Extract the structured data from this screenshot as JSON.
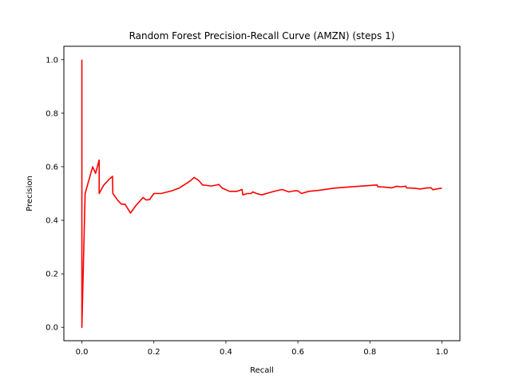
{
  "chart_data": {
    "type": "line",
    "title": "Random Forest Precision-Recall Curve (AMZN) (steps 1)",
    "xlabel": "Recall",
    "ylabel": "Precision",
    "xlim": [
      -0.05,
      1.05
    ],
    "ylim": [
      -0.05,
      1.05
    ],
    "xticks": [
      0.0,
      0.2,
      0.4,
      0.6,
      0.8,
      1.0
    ],
    "xtick_labels": [
      "0.0",
      "0.2",
      "0.4",
      "0.6",
      "0.8",
      "1.0"
    ],
    "yticks": [
      0.0,
      0.2,
      0.4,
      0.6,
      0.8,
      1.0
    ],
    "ytick_labels": [
      "0.0",
      "0.2",
      "0.4",
      "0.6",
      "0.8",
      "1.0"
    ],
    "grid": false,
    "legend": "none",
    "series": [
      {
        "color": "#ff0000",
        "x": [
          0.0,
          0.0,
          0.0,
          0.009,
          0.03,
          0.038,
          0.045,
          0.048,
          0.048,
          0.06,
          0.075,
          0.085,
          0.086,
          0.1,
          0.11,
          0.12,
          0.135,
          0.15,
          0.17,
          0.178,
          0.188,
          0.2,
          0.22,
          0.25,
          0.27,
          0.3,
          0.312,
          0.325,
          0.335,
          0.36,
          0.375,
          0.38,
          0.39,
          0.41,
          0.43,
          0.445,
          0.447,
          0.46,
          0.47,
          0.475,
          0.485,
          0.5,
          0.52,
          0.54,
          0.556,
          0.575,
          0.59,
          0.6,
          0.61,
          0.63,
          0.66,
          0.7,
          0.75,
          0.8,
          0.82,
          0.822,
          0.84,
          0.86,
          0.875,
          0.885,
          0.9,
          0.902,
          0.92,
          0.94,
          0.96,
          0.97,
          0.975,
          0.99,
          1.0
        ],
        "values": [
          1.0,
          0.0,
          0.0,
          0.5,
          0.6,
          0.575,
          0.61,
          0.625,
          0.5,
          0.53,
          0.552,
          0.564,
          0.5,
          0.474,
          0.46,
          0.46,
          0.427,
          0.455,
          0.485,
          0.476,
          0.477,
          0.5,
          0.5,
          0.51,
          0.52,
          0.546,
          0.56,
          0.548,
          0.532,
          0.528,
          0.532,
          0.534,
          0.52,
          0.508,
          0.508,
          0.515,
          0.495,
          0.5,
          0.5,
          0.506,
          0.5,
          0.495,
          0.503,
          0.51,
          0.515,
          0.506,
          0.51,
          0.51,
          0.5,
          0.508,
          0.512,
          0.52,
          0.525,
          0.53,
          0.532,
          0.525,
          0.524,
          0.521,
          0.527,
          0.525,
          0.527,
          0.521,
          0.52,
          0.517,
          0.521,
          0.521,
          0.514,
          0.518,
          0.52
        ]
      }
    ]
  }
}
